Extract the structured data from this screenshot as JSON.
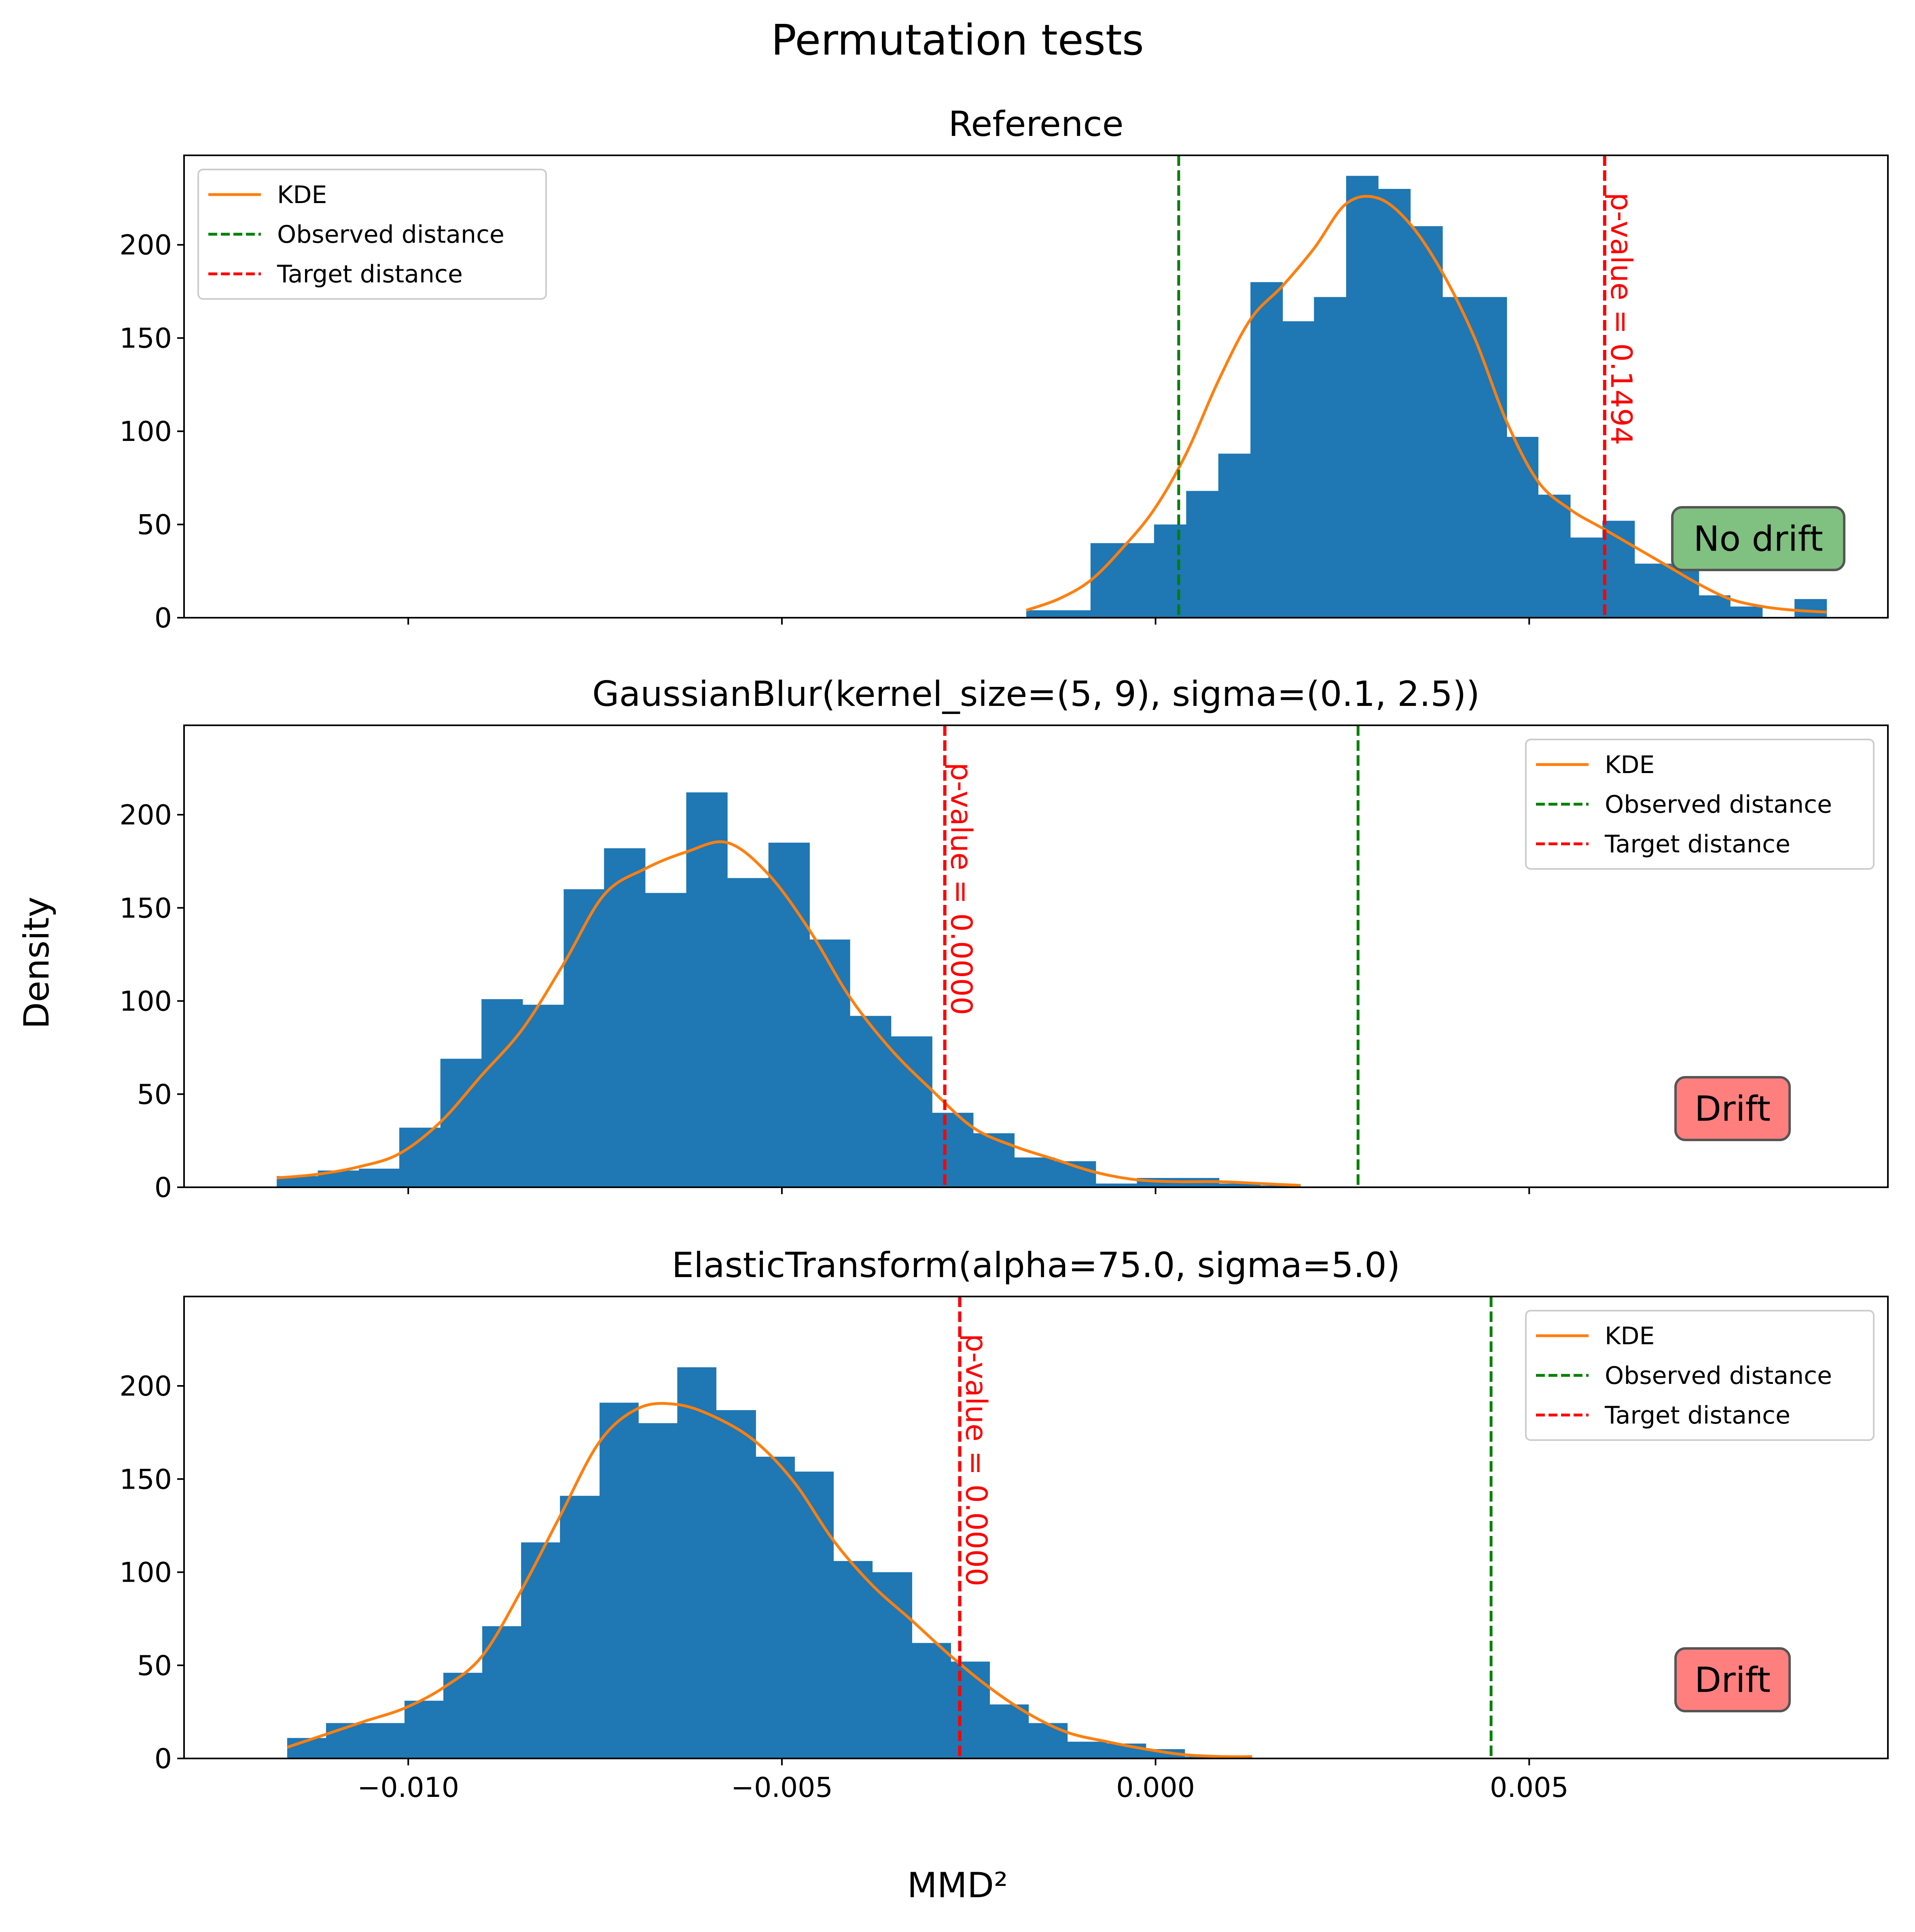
{
  "figure": {
    "title": "Permutation tests",
    "xlabel": "MMD²",
    "ylabel": "Density",
    "colors": {
      "hist": "#1f77b4",
      "kde": "#ff7f0e",
      "observed": "#008000",
      "target": "#ff0000",
      "no_drift_badge": "#80c080",
      "drift_badge": "#ff7f7f"
    }
  },
  "chart_data": [
    {
      "type": "bar",
      "title": "Reference",
      "xlim": [
        -0.013,
        0.0098
      ],
      "ylim": [
        0,
        248
      ],
      "xticks": [
        -0.01,
        -0.005,
        0.0,
        0.005
      ],
      "xtick_labels": [
        "",
        "",
        "",
        ""
      ],
      "yticks": [
        0,
        50,
        100,
        150,
        200
      ],
      "bin_edges": [
        -0.00173,
        -0.00087,
        -2e-05,
        0.00084,
        0.0017,
        0.00255,
        0.00341,
        0.00427,
        0.00512,
        0.00598,
        0.00684,
        0.00769,
        0.00855,
        0.0094,
        0.01026,
        0.01112,
        0.01197,
        0.01283,
        0.01369,
        0.01454,
        0.0154,
        0.01626,
        0.01711,
        0.01797,
        0.01883
      ],
      "bar_values": [],
      "hist": {
        "edges": [
          -0.00173,
          -0.00087,
          -2e-05,
          0.00041,
          0.00084,
          0.00127,
          0.0017,
          0.00212,
          0.00255,
          0.00298,
          0.00341,
          0.00384,
          0.00427,
          0.0047,
          0.00512,
          0.00555,
          0.00598,
          0.00641,
          0.00684,
          0.00727,
          0.00769,
          0.00812,
          0.00855,
          0.00898
        ],
        "values": [
          4,
          40,
          50,
          68,
          88,
          180,
          159,
          172,
          237,
          230,
          210,
          172,
          172,
          97,
          66,
          43,
          52,
          29,
          29,
          12,
          6,
          0,
          10
        ]
      },
      "kde": {
        "x": [
          -0.00173,
          -0.0013,
          -0.00087,
          -0.00045,
          -2e-05,
          0.00041,
          0.00084,
          0.00127,
          0.0017,
          0.00212,
          0.00255,
          0.00298,
          0.00341,
          0.00384,
          0.00427,
          0.0047,
          0.00512,
          0.00555,
          0.00598,
          0.00641,
          0.00684,
          0.00727,
          0.00769,
          0.00812,
          0.00855,
          0.00898
        ],
        "y": [
          4,
          10,
          20,
          37,
          58,
          88,
          127,
          160,
          178,
          198,
          222,
          225,
          211,
          185,
          150,
          105,
          73,
          58,
          48,
          38,
          28,
          18,
          10,
          6,
          4,
          3
        ]
      },
      "observed_distance": 0.00031,
      "target_distance": 0.00601,
      "p_value_label": "p-value = 0.1494",
      "verdict": "No drift",
      "verdict_kind": "no_drift",
      "legend": {
        "placement": "top-left",
        "entries": [
          "KDE",
          "Observed distance",
          "Target distance"
        ]
      }
    },
    {
      "type": "bar",
      "title": "GaussianBlur(kernel_size=(5, 9), sigma=(0.1, 2.5))",
      "xlim": [
        -0.013,
        0.0098
      ],
      "ylim": [
        0,
        248
      ],
      "xticks": [
        -0.01,
        -0.005,
        0.0,
        0.005
      ],
      "xtick_labels": [
        "",
        "",
        "",
        ""
      ],
      "yticks": [
        0,
        50,
        100,
        150,
        200
      ],
      "hist": {
        "edges": [
          -0.01176,
          -0.01121,
          -0.01066,
          -0.01012,
          -0.00957,
          -0.00902,
          -0.00847,
          -0.00792,
          -0.00738,
          -0.00683,
          -0.00628,
          -0.00573,
          -0.00518,
          -0.00463,
          -0.00409,
          -0.00354,
          -0.00299,
          -0.00244,
          -0.00189,
          -0.00135,
          -0.0008,
          -0.00025,
          0.0003,
          0.00085,
          0.0014,
          0.00194
        ],
        "values": [
          6,
          9,
          10,
          32,
          69,
          101,
          98,
          160,
          182,
          158,
          212,
          166,
          185,
          133,
          92,
          81,
          40,
          29,
          16,
          14,
          2,
          5,
          5,
          2,
          1
        ]
      },
      "kde": {
        "x": [
          -0.01176,
          -0.01121,
          -0.01066,
          -0.01012,
          -0.00957,
          -0.00902,
          -0.00847,
          -0.00792,
          -0.00738,
          -0.00683,
          -0.00628,
          -0.00573,
          -0.00518,
          -0.00463,
          -0.00409,
          -0.00354,
          -0.00299,
          -0.00244,
          -0.00189,
          -0.00135,
          -0.0008,
          -0.00025,
          0.0003,
          0.00085,
          0.0014,
          0.00194
        ],
        "y": [
          5,
          7,
          11,
          18,
          35,
          60,
          85,
          120,
          157,
          171,
          180,
          185,
          168,
          138,
          102,
          74,
          52,
          32,
          22,
          15,
          8,
          4,
          3,
          3,
          2,
          1
        ]
      },
      "observed_distance": 0.00271,
      "target_distance": -0.00282,
      "p_value_label": "p-value = 0.0000",
      "verdict": "Drift",
      "verdict_kind": "drift",
      "legend": {
        "placement": "top-right",
        "entries": [
          "KDE",
          "Observed distance",
          "Target distance"
        ]
      }
    },
    {
      "type": "bar",
      "title": "ElasticTransform(alpha=75.0, sigma=5.0)",
      "xlim": [
        -0.013,
        0.0098
      ],
      "ylim": [
        0,
        248
      ],
      "xticks": [
        -0.01,
        -0.005,
        0.0,
        0.005
      ],
      "xtick_labels": [
        "−0.010",
        "−0.005",
        "0.000",
        "0.005"
      ],
      "yticks": [
        0,
        50,
        100,
        150,
        200
      ],
      "hist": {
        "edges": [
          -0.01162,
          -0.0111,
          -0.01058,
          -0.01005,
          -0.00953,
          -0.00901,
          -0.00849,
          -0.00797,
          -0.00744,
          -0.00692,
          -0.0064,
          -0.00588,
          -0.00535,
          -0.00483,
          -0.00431,
          -0.00379,
          -0.00326,
          -0.00274,
          -0.00222,
          -0.0017,
          -0.00118,
          -0.00065,
          -0.00013,
          0.00039,
          0.00091,
          0.00129
        ],
        "values": [
          11,
          19,
          19,
          31,
          46,
          71,
          116,
          141,
          191,
          180,
          210,
          187,
          162,
          154,
          106,
          100,
          62,
          52,
          29,
          19,
          9,
          8,
          5,
          1,
          1
        ]
      },
      "kde": {
        "x": [
          -0.01162,
          -0.0111,
          -0.01058,
          -0.01005,
          -0.00953,
          -0.00901,
          -0.00849,
          -0.00797,
          -0.00744,
          -0.00692,
          -0.0064,
          -0.00588,
          -0.00535,
          -0.00483,
          -0.00431,
          -0.00379,
          -0.00326,
          -0.00274,
          -0.00222,
          -0.0017,
          -0.00118,
          -0.00065,
          -0.00013,
          0.00039,
          0.00091,
          0.00129
        ],
        "y": [
          6,
          13,
          20,
          27,
          38,
          55,
          90,
          130,
          170,
          188,
          190,
          183,
          170,
          148,
          117,
          93,
          74,
          55,
          38,
          24,
          14,
          9,
          5,
          2,
          1,
          1
        ]
      },
      "observed_distance": 0.00449,
      "target_distance": -0.00262,
      "p_value_label": "p-value = 0.0000",
      "verdict": "Drift",
      "verdict_kind": "drift",
      "legend": {
        "placement": "top-right",
        "entries": [
          "KDE",
          "Observed distance",
          "Target distance"
        ]
      }
    }
  ]
}
